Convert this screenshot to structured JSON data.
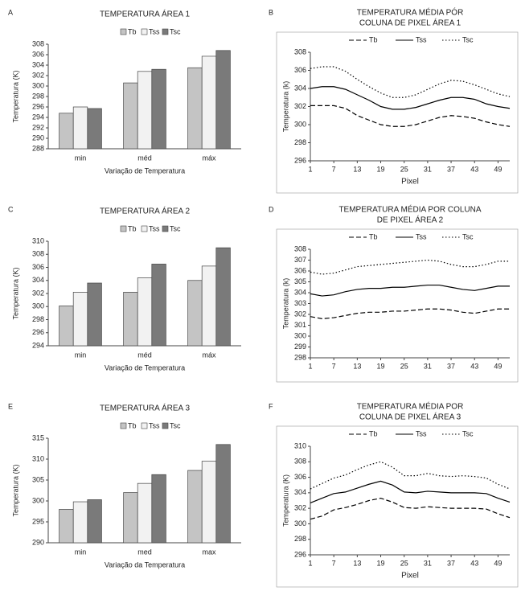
{
  "chart_data": [
    {
      "panel": "A",
      "type": "bar",
      "title": [
        "TEMPERATURA ÁREA 1"
      ],
      "y_label": "Temperatura (K)",
      "x_label": "Variação de Temperatura",
      "categories": [
        "min",
        "méd",
        "máx"
      ],
      "ylim": [
        288,
        308
      ],
      "yticks": [
        288,
        290,
        292,
        294,
        296,
        298,
        300,
        302,
        304,
        306,
        308
      ],
      "series": [
        {
          "name": "Tb",
          "color": "#c4c4c4",
          "values": [
            294.8,
            300.6,
            303.5
          ]
        },
        {
          "name": "Tss",
          "color": "#f2f2f2",
          "values": [
            296.0,
            302.8,
            305.7
          ]
        },
        {
          "name": "Tsc",
          "color": "#7a7a7a",
          "values": [
            295.7,
            303.2,
            306.8
          ]
        }
      ]
    },
    {
      "panel": "B",
      "type": "line",
      "title": [
        "TEMPERATURA MÉDIA PÓR",
        "COLUNA DE PIXEL  ÁREA 1"
      ],
      "y_label": "Temperatura (k)",
      "x_label": "Pixel",
      "x": [
        1,
        4,
        7,
        10,
        13,
        16,
        19,
        22,
        25,
        28,
        31,
        34,
        37,
        40,
        43,
        46,
        49,
        52
      ],
      "xlim": [
        1,
        52
      ],
      "xticks": [
        1,
        7,
        13,
        19,
        25,
        31,
        37,
        43,
        49
      ],
      "ylim": [
        296,
        308
      ],
      "yticks": [
        296,
        298,
        300,
        302,
        304,
        306,
        308
      ],
      "series": [
        {
          "name": "Tb",
          "color": "#000000",
          "dash": "dashed",
          "values": [
            302.1,
            302.1,
            302.1,
            301.8,
            301.0,
            300.5,
            300.0,
            299.8,
            299.8,
            300.0,
            300.4,
            300.8,
            301.0,
            300.9,
            300.7,
            300.3,
            300.0,
            299.8
          ]
        },
        {
          "name": "Tss",
          "color": "#000000",
          "dash": "solid",
          "values": [
            304.0,
            304.2,
            304.2,
            303.9,
            303.3,
            302.7,
            302.0,
            301.7,
            301.7,
            301.9,
            302.3,
            302.7,
            303.0,
            303.0,
            302.8,
            302.3,
            302.0,
            301.8
          ]
        },
        {
          "name": "Tsc",
          "color": "#000000",
          "dash": "dotted",
          "values": [
            306.2,
            306.4,
            306.4,
            305.9,
            305.0,
            304.2,
            303.5,
            303.0,
            303.0,
            303.3,
            303.9,
            304.5,
            304.9,
            304.8,
            304.4,
            303.9,
            303.4,
            303.1
          ]
        }
      ]
    },
    {
      "panel": "C",
      "type": "bar",
      "title": [
        "TEMPERATURA ÁREA 2"
      ],
      "y_label": "Temperatura (K)",
      "x_label": "Variação de Temperatura",
      "categories": [
        "min",
        "méd",
        "máx"
      ],
      "ylim": [
        294,
        310
      ],
      "yticks": [
        294,
        296,
        298,
        300,
        302,
        304,
        306,
        308,
        310
      ],
      "series": [
        {
          "name": "Tb",
          "color": "#c4c4c4",
          "values": [
            300.1,
            302.2,
            304.0
          ]
        },
        {
          "name": "Tss",
          "color": "#f2f2f2",
          "values": [
            302.2,
            304.4,
            306.2
          ]
        },
        {
          "name": "Tsc",
          "color": "#7a7a7a",
          "values": [
            303.6,
            306.5,
            309.0
          ]
        }
      ]
    },
    {
      "panel": "D",
      "type": "line",
      "title": [
        "TEMPERATURA MÉDIA POR COLUNA",
        "DE PIXEL ÁREA 2"
      ],
      "y_label": "Temperatura (k)",
      "x": [
        1,
        4,
        7,
        10,
        13,
        16,
        19,
        22,
        25,
        28,
        31,
        34,
        37,
        40,
        43,
        46,
        49,
        52
      ],
      "xlim": [
        1,
        52
      ],
      "xticks": [
        1,
        7,
        13,
        19,
        25,
        31,
        37,
        43,
        49
      ],
      "ylim": [
        298,
        308
      ],
      "yticks": [
        298,
        299,
        300,
        301,
        302,
        303,
        304,
        305,
        306,
        307,
        308
      ],
      "series": [
        {
          "name": "Tb",
          "color": "#000000",
          "dash": "dashed",
          "values": [
            301.8,
            301.6,
            301.7,
            301.9,
            302.1,
            302.2,
            302.2,
            302.3,
            302.3,
            302.4,
            302.5,
            302.5,
            302.4,
            302.2,
            302.1,
            302.3,
            302.5,
            302.5
          ]
        },
        {
          "name": "Tss",
          "color": "#000000",
          "dash": "solid",
          "values": [
            303.9,
            303.7,
            303.8,
            304.1,
            304.3,
            304.4,
            304.4,
            304.5,
            304.5,
            304.6,
            304.7,
            304.7,
            304.5,
            304.3,
            304.2,
            304.4,
            304.6,
            304.6
          ]
        },
        {
          "name": "Tsc",
          "color": "#000000",
          "dash": "dotted",
          "values": [
            305.9,
            305.7,
            305.8,
            306.1,
            306.4,
            306.5,
            306.6,
            306.7,
            306.8,
            306.9,
            307.0,
            306.9,
            306.6,
            306.4,
            306.4,
            306.6,
            306.9,
            306.9
          ]
        }
      ]
    },
    {
      "panel": "E",
      "type": "bar",
      "title": [
        "TEMPERATURA ÁREA 3"
      ],
      "y_label": "Temperatura (K)",
      "x_label": "Variação da Temperatura",
      "categories": [
        "min",
        "med",
        "max"
      ],
      "ylim": [
        290,
        315
      ],
      "yticks": [
        290,
        295,
        300,
        305,
        310,
        315
      ],
      "series": [
        {
          "name": "Tb",
          "color": "#c4c4c4",
          "values": [
            298.0,
            302.0,
            307.3
          ]
        },
        {
          "name": "Tss",
          "color": "#f2f2f2",
          "values": [
            299.8,
            304.2,
            309.5
          ]
        },
        {
          "name": "Tsc",
          "color": "#7a7a7a",
          "values": [
            300.3,
            306.3,
            313.5
          ]
        }
      ]
    },
    {
      "panel": "F",
      "type": "line",
      "title": [
        "TEMPERATURA MÉDIA POR",
        "COLUNA DE PIXEL ÁREA 3"
      ],
      "y_label": "Temperatura (K)",
      "x_label": "Pixel",
      "x": [
        1,
        4,
        7,
        10,
        13,
        16,
        19,
        22,
        25,
        28,
        31,
        34,
        37,
        40,
        43,
        46,
        49,
        52
      ],
      "xlim": [
        1,
        52
      ],
      "xticks": [
        1,
        7,
        13,
        19,
        25,
        31,
        37,
        43,
        49
      ],
      "ylim": [
        296,
        310
      ],
      "yticks": [
        296,
        298,
        300,
        302,
        304,
        306,
        308,
        310
      ],
      "series": [
        {
          "name": "Tb",
          "color": "#000000",
          "dash": "dashed",
          "values": [
            300.6,
            301.0,
            301.8,
            302.1,
            302.5,
            303.0,
            303.3,
            302.8,
            302.1,
            302.0,
            302.2,
            302.1,
            302.0,
            302.0,
            302.0,
            301.9,
            301.3,
            300.8
          ]
        },
        {
          "name": "Tss",
          "color": "#000000",
          "dash": "solid",
          "values": [
            302.7,
            303.3,
            303.9,
            304.1,
            304.6,
            305.1,
            305.5,
            305.0,
            304.1,
            304.0,
            304.2,
            304.1,
            304.0,
            304.0,
            304.0,
            303.9,
            303.3,
            302.8
          ]
        },
        {
          "name": "Tsc",
          "color": "#000000",
          "dash": "dotted",
          "values": [
            304.5,
            305.2,
            305.9,
            306.3,
            307.0,
            307.6,
            308.0,
            307.3,
            306.2,
            306.2,
            306.5,
            306.2,
            306.1,
            306.2,
            306.1,
            305.9,
            305.1,
            304.5
          ]
        }
      ]
    }
  ]
}
